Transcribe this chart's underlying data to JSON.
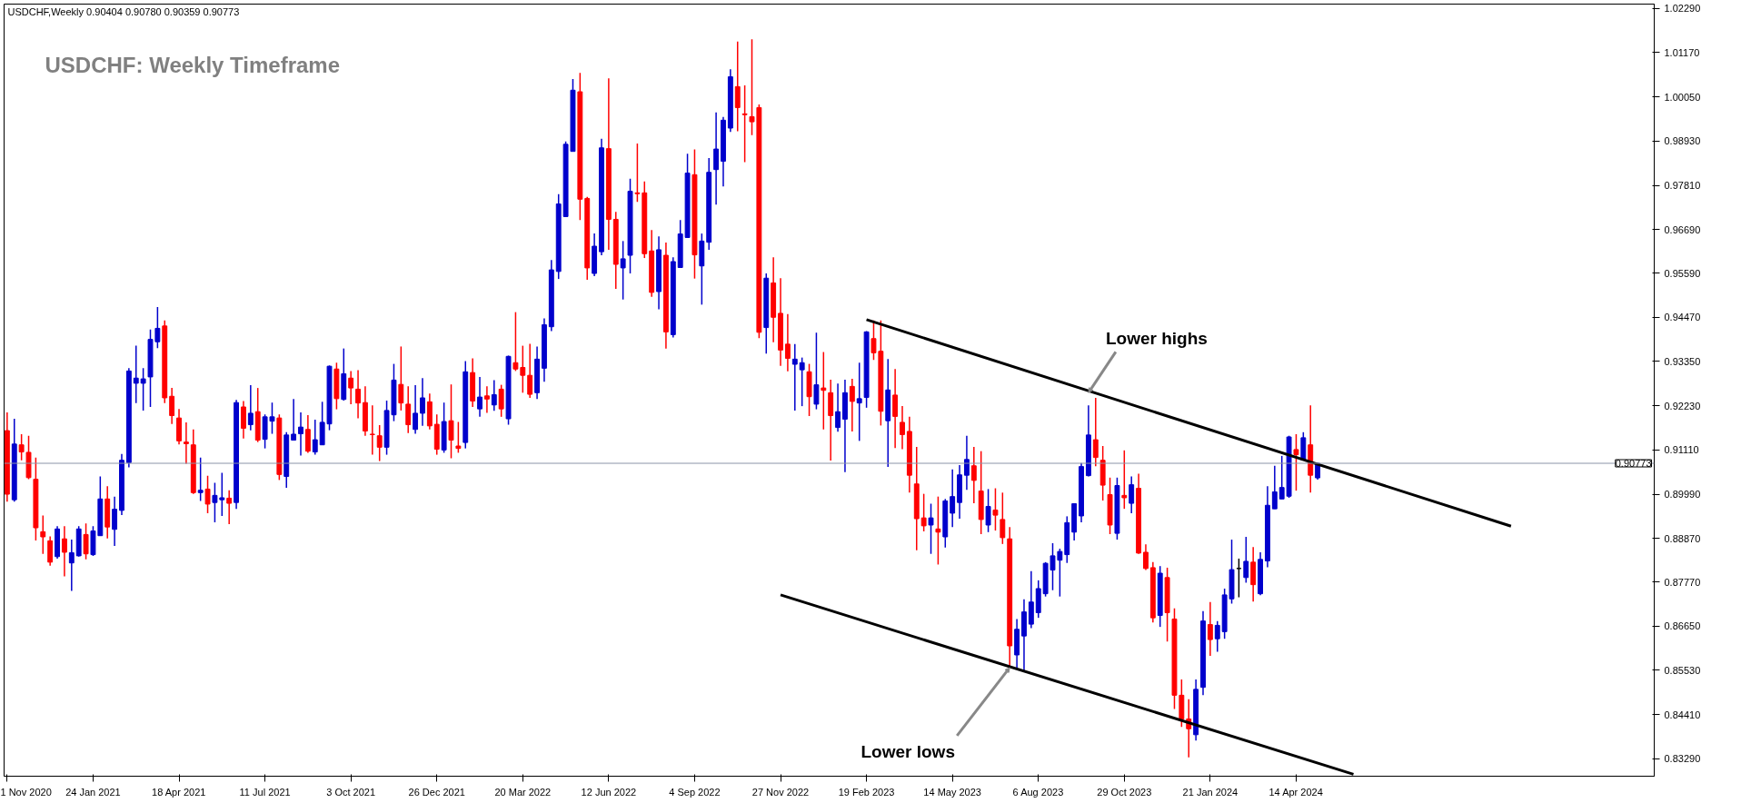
{
  "chart_data": {
    "type": "candlestick",
    "title": "USDCHF: Weekly Timeframe",
    "annotations": [
      "USDCHF,Weekly  0.90404 0.90780 0.90359 0.90773",
      {
        "text": "Lower highs",
        "x": "2023-09-24",
        "y": 0.9256
      },
      {
        "text": "Lower lows",
        "x": "2023-07-09",
        "y": 0.856
      }
    ],
    "x": [
      "2020-11-01",
      "2020-11-08",
      "2020-11-15",
      "2020-11-22",
      "2020-11-29",
      "2020-12-06",
      "2020-12-13",
      "2020-12-20",
      "2020-12-27",
      "2021-01-03",
      "2021-01-10",
      "2021-01-17",
      "2021-01-24",
      "2021-01-31",
      "2021-02-07",
      "2021-02-14",
      "2021-02-21",
      "2021-02-28",
      "2021-03-07",
      "2021-03-14",
      "2021-03-21",
      "2021-03-28",
      "2021-04-04",
      "2021-04-11",
      "2021-04-18",
      "2021-04-25",
      "2021-05-02",
      "2021-05-09",
      "2021-05-16",
      "2021-05-23",
      "2021-05-30",
      "2021-06-06",
      "2021-06-13",
      "2021-06-20",
      "2021-06-27",
      "2021-07-04",
      "2021-07-11",
      "2021-07-18",
      "2021-07-25",
      "2021-08-01",
      "2021-08-08",
      "2021-08-15",
      "2021-08-22",
      "2021-08-29",
      "2021-09-05",
      "2021-09-12",
      "2021-09-19",
      "2021-09-26",
      "2021-10-03",
      "2021-10-10",
      "2021-10-17",
      "2021-10-24",
      "2021-10-31",
      "2021-11-07",
      "2021-11-14",
      "2021-11-21",
      "2021-11-28",
      "2021-12-05",
      "2021-12-12",
      "2021-12-19",
      "2021-12-26",
      "2022-01-02",
      "2022-01-09",
      "2022-01-16",
      "2022-01-23",
      "2022-01-30",
      "2022-02-06",
      "2022-02-13",
      "2022-02-20",
      "2022-02-27",
      "2022-03-06",
      "2022-03-13",
      "2022-03-20",
      "2022-03-27",
      "2022-04-03",
      "2022-04-10",
      "2022-04-17",
      "2022-04-24",
      "2022-05-01",
      "2022-05-08",
      "2022-05-15",
      "2022-05-22",
      "2022-05-29",
      "2022-06-05",
      "2022-06-12",
      "2022-06-19",
      "2022-06-26",
      "2022-07-03",
      "2022-07-10",
      "2022-07-17",
      "2022-07-24",
      "2022-07-31",
      "2022-08-07",
      "2022-08-14",
      "2022-08-21",
      "2022-08-28",
      "2022-09-04",
      "2022-09-11",
      "2022-09-18",
      "2022-09-25",
      "2022-10-02",
      "2022-10-09",
      "2022-10-16",
      "2022-10-23",
      "2022-10-30",
      "2022-11-06",
      "2022-11-13",
      "2022-11-20",
      "2022-11-27",
      "2022-12-04",
      "2022-12-11",
      "2022-12-18",
      "2022-12-25",
      "2023-01-01",
      "2023-01-08",
      "2023-01-15",
      "2023-01-22",
      "2023-01-29",
      "2023-02-05",
      "2023-02-12",
      "2023-02-19",
      "2023-02-26",
      "2023-03-05",
      "2023-03-12",
      "2023-03-19",
      "2023-03-26",
      "2023-04-02",
      "2023-04-09",
      "2023-04-16",
      "2023-04-23",
      "2023-04-30",
      "2023-05-07",
      "2023-05-14",
      "2023-05-21",
      "2023-05-28",
      "2023-06-04",
      "2023-06-11",
      "2023-06-18",
      "2023-06-25",
      "2023-07-02",
      "2023-07-09",
      "2023-07-16",
      "2023-07-23",
      "2023-07-30",
      "2023-08-06",
      "2023-08-13",
      "2023-08-20",
      "2023-08-27",
      "2023-09-03",
      "2023-09-10",
      "2023-09-17",
      "2023-09-24",
      "2023-10-01",
      "2023-10-08",
      "2023-10-15",
      "2023-10-22",
      "2023-10-29",
      "2023-11-05",
      "2023-11-12",
      "2023-11-19",
      "2023-11-26",
      "2023-12-03",
      "2023-12-10",
      "2023-12-17",
      "2023-12-24",
      "2023-12-31",
      "2024-01-07",
      "2024-01-14",
      "2024-01-21",
      "2024-01-28",
      "2024-02-04",
      "2024-02-11",
      "2024-02-18",
      "2024-02-25",
      "2024-03-03",
      "2024-03-10",
      "2024-03-17",
      "2024-03-24",
      "2024-03-31",
      "2024-04-07",
      "2024-04-14",
      "2024-04-21",
      "2024-04-28",
      "2024-05-05"
    ],
    "ohlc": [
      [
        0.916,
        0.9206,
        0.898,
        0.8999
      ],
      [
        0.8985,
        0.919,
        0.898,
        0.9126
      ],
      [
        0.9124,
        0.9151,
        0.9085,
        0.9106
      ],
      [
        0.9105,
        0.9147,
        0.9037,
        0.9041
      ],
      [
        0.9037,
        0.9092,
        0.8882,
        0.8914
      ],
      [
        0.8904,
        0.8945,
        0.8848,
        0.8891
      ],
      [
        0.8881,
        0.8892,
        0.8818,
        0.8827
      ],
      [
        0.8841,
        0.8918,
        0.8836,
        0.8911
      ],
      [
        0.8886,
        0.8918,
        0.8791,
        0.8852
      ],
      [
        0.8825,
        0.8884,
        0.8754,
        0.8851
      ],
      [
        0.8843,
        0.8918,
        0.8841,
        0.8911
      ],
      [
        0.8897,
        0.8925,
        0.8834,
        0.8848
      ],
      [
        0.8846,
        0.8918,
        0.8843,
        0.8906
      ],
      [
        0.8894,
        0.9044,
        0.8894,
        0.8987
      ],
      [
        0.8987,
        0.9019,
        0.8887,
        0.8916
      ],
      [
        0.891,
        0.8993,
        0.8868,
        0.8961
      ],
      [
        0.8958,
        0.9101,
        0.8946,
        0.9085
      ],
      [
        0.9079,
        0.9318,
        0.9067,
        0.9311
      ],
      [
        0.928,
        0.9375,
        0.923,
        0.9293
      ],
      [
        0.928,
        0.9318,
        0.9211,
        0.9291
      ],
      [
        0.9296,
        0.9416,
        0.922,
        0.9391
      ],
      [
        0.9385,
        0.9473,
        0.9369,
        0.9419
      ],
      [
        0.9425,
        0.9439,
        0.923,
        0.9243
      ],
      [
        0.9247,
        0.9268,
        0.9177,
        0.9198
      ],
      [
        0.9192,
        0.9215,
        0.9125,
        0.9134
      ],
      [
        0.9131,
        0.9181,
        0.9076,
        0.9127
      ],
      [
        0.9124,
        0.9163,
        0.9,
        0.9003
      ],
      [
        0.9003,
        0.9092,
        0.8982,
        0.9009
      ],
      [
        0.9012,
        0.9046,
        0.8951,
        0.8974
      ],
      [
        0.8978,
        0.9028,
        0.8928,
        0.8996
      ],
      [
        0.8985,
        0.9053,
        0.8944,
        0.899
      ],
      [
        0.8989,
        0.9009,
        0.8923,
        0.8976
      ],
      [
        0.8978,
        0.9238,
        0.8962,
        0.9231
      ],
      [
        0.922,
        0.9235,
        0.914,
        0.9166
      ],
      [
        0.9175,
        0.9275,
        0.9161,
        0.9204
      ],
      [
        0.9208,
        0.9268,
        0.9131,
        0.9136
      ],
      [
        0.9138,
        0.9201,
        0.9115,
        0.9195
      ],
      [
        0.9184,
        0.9231,
        0.9152,
        0.9195
      ],
      [
        0.9192,
        0.9201,
        0.9035,
        0.9049
      ],
      [
        0.9044,
        0.9156,
        0.9015,
        0.9149
      ],
      [
        0.9136,
        0.924,
        0.9136,
        0.9151
      ],
      [
        0.9152,
        0.9206,
        0.9097,
        0.9169
      ],
      [
        0.9163,
        0.9199,
        0.9104,
        0.9108
      ],
      [
        0.9106,
        0.9188,
        0.9099,
        0.9137
      ],
      [
        0.9124,
        0.9233,
        0.9124,
        0.9181
      ],
      [
        0.9177,
        0.9325,
        0.9161,
        0.9323
      ],
      [
        0.9316,
        0.9332,
        0.9214,
        0.9241
      ],
      [
        0.9239,
        0.9368,
        0.9236,
        0.9304
      ],
      [
        0.9293,
        0.9311,
        0.9227,
        0.9268
      ],
      [
        0.9265,
        0.9313,
        0.9191,
        0.923
      ],
      [
        0.9231,
        0.9272,
        0.9147,
        0.9159
      ],
      [
        0.9151,
        0.9224,
        0.9099,
        0.915
      ],
      [
        0.9147,
        0.9174,
        0.9083,
        0.9118
      ],
      [
        0.9118,
        0.9236,
        0.9099,
        0.9211
      ],
      [
        0.92,
        0.9329,
        0.9184,
        0.9288
      ],
      [
        0.9277,
        0.9373,
        0.9211,
        0.923
      ],
      [
        0.9227,
        0.9272,
        0.9154,
        0.9175
      ],
      [
        0.9163,
        0.9275,
        0.9152,
        0.9204
      ],
      [
        0.9204,
        0.9293,
        0.9172,
        0.9243
      ],
      [
        0.9233,
        0.9254,
        0.9163,
        0.9172
      ],
      [
        0.9176,
        0.9201,
        0.9099,
        0.9113
      ],
      [
        0.9111,
        0.9231,
        0.9104,
        0.9183
      ],
      [
        0.9185,
        0.9277,
        0.909,
        0.9136
      ],
      [
        0.9121,
        0.9182,
        0.9104,
        0.9115
      ],
      [
        0.913,
        0.9336,
        0.9115,
        0.9309
      ],
      [
        0.9307,
        0.9343,
        0.922,
        0.9235
      ],
      [
        0.9215,
        0.9296,
        0.9195,
        0.9245
      ],
      [
        0.9248,
        0.9272,
        0.9205,
        0.924
      ],
      [
        0.9225,
        0.9288,
        0.921,
        0.9251
      ],
      [
        0.9265,
        0.9276,
        0.9195,
        0.9215
      ],
      [
        0.919,
        0.935,
        0.9175,
        0.9348
      ],
      [
        0.9332,
        0.946,
        0.9311,
        0.9316
      ],
      [
        0.932,
        0.9375,
        0.9256,
        0.93
      ],
      [
        0.93,
        0.938,
        0.9243,
        0.9252
      ],
      [
        0.9256,
        0.9373,
        0.924,
        0.9341
      ],
      [
        0.9318,
        0.9444,
        0.9284,
        0.9428
      ],
      [
        0.9423,
        0.9592,
        0.9412,
        0.9567
      ],
      [
        0.9563,
        0.9759,
        0.9544,
        0.9734
      ],
      [
        0.9702,
        0.9892,
        0.9702,
        0.9885
      ],
      [
        0.9867,
        1.005,
        0.9867,
        1.0022
      ],
      [
        1.0018,
        1.0066,
        0.9693,
        0.9746
      ],
      [
        0.9748,
        0.9752,
        0.9542,
        0.9572
      ],
      [
        0.9558,
        0.9659,
        0.9551,
        0.9627
      ],
      [
        0.9613,
        0.9899,
        0.9604,
        0.9876
      ],
      [
        0.9874,
        1.0052,
        0.9618,
        0.9695
      ],
      [
        0.9695,
        0.9714,
        0.9519,
        0.9581
      ],
      [
        0.9572,
        0.964,
        0.9492,
        0.9595
      ],
      [
        0.9604,
        0.9798,
        0.9558,
        0.9766
      ],
      [
        0.9762,
        0.9887,
        0.9739,
        0.976
      ],
      [
        0.9762,
        0.9791,
        0.9597,
        0.9608
      ],
      [
        0.9615,
        0.9668,
        0.9499,
        0.951
      ],
      [
        0.9512,
        0.9652,
        0.9467,
        0.9618
      ],
      [
        0.9604,
        0.9636,
        0.9368,
        0.941
      ],
      [
        0.9403,
        0.9599,
        0.9396,
        0.9588
      ],
      [
        0.9573,
        0.9693,
        0.9573,
        0.9658
      ],
      [
        0.9649,
        0.9861,
        0.9649,
        0.9812
      ],
      [
        0.9808,
        0.9872,
        0.9545,
        0.9605
      ],
      [
        0.9577,
        0.9659,
        0.9479,
        0.964
      ],
      [
        0.9637,
        0.985,
        0.9618,
        0.9814
      ],
      [
        0.9821,
        0.9966,
        0.9732,
        0.9873
      ],
      [
        0.9842,
        0.9954,
        0.9778,
        0.9946
      ],
      [
        0.9926,
        1.0075,
        0.9916,
        1.0056
      ],
      [
        1.0031,
        1.0145,
        0.9918,
        0.9978
      ],
      [
        0.9962,
        1.0034,
        0.984,
        0.996
      ],
      [
        0.9955,
        1.0151,
        0.9908,
        0.9942
      ],
      [
        0.9978,
        0.9986,
        0.9394,
        0.9409
      ],
      [
        0.9421,
        0.9558,
        0.9355,
        0.9546
      ],
      [
        0.9534,
        0.9599,
        0.9384,
        0.9447
      ],
      [
        0.9457,
        0.9546,
        0.9324,
        0.9364
      ],
      [
        0.9379,
        0.9455,
        0.931,
        0.9343
      ],
      [
        0.9328,
        0.9379,
        0.9211,
        0.9341
      ],
      [
        0.9314,
        0.9345,
        0.9222,
        0.9332
      ],
      [
        0.9309,
        0.9329,
        0.9197,
        0.9246
      ],
      [
        0.9227,
        0.9408,
        0.9214,
        0.9276
      ],
      [
        0.9268,
        0.9359,
        0.9163,
        0.9262
      ],
      [
        0.9256,
        0.9289,
        0.9084,
        0.9198
      ],
      [
        0.9168,
        0.9279,
        0.9157,
        0.9208
      ],
      [
        0.9189,
        0.9289,
        0.9055,
        0.9256
      ],
      [
        0.9272,
        0.9291,
        0.9158,
        0.9234
      ],
      [
        0.923,
        0.9332,
        0.9134,
        0.9241
      ],
      [
        0.9244,
        0.9412,
        0.9218,
        0.941
      ],
      [
        0.9393,
        0.9439,
        0.9339,
        0.9357
      ],
      [
        0.9361,
        0.9439,
        0.9173,
        0.9209
      ],
      [
        0.9185,
        0.9341,
        0.9068,
        0.9263
      ],
      [
        0.925,
        0.9316,
        0.9116,
        0.9196
      ],
      [
        0.9181,
        0.9222,
        0.9113,
        0.915
      ],
      [
        0.9158,
        0.9195,
        0.9003,
        0.9047
      ],
      [
        0.9025,
        0.9119,
        0.8857,
        0.8937
      ],
      [
        0.8939,
        0.9,
        0.8905,
        0.8919
      ],
      [
        0.8921,
        0.8975,
        0.8848,
        0.8939
      ],
      [
        0.8911,
        0.8993,
        0.8821,
        0.8903
      ],
      [
        0.8891,
        0.8987,
        0.8864,
        0.8982
      ],
      [
        0.8951,
        0.9062,
        0.8916,
        0.8993
      ],
      [
        0.8978,
        0.9073,
        0.8937,
        0.9048
      ],
      [
        0.9047,
        0.9147,
        0.901,
        0.9087
      ],
      [
        0.9071,
        0.9119,
        0.8976,
        0.9034
      ],
      [
        0.9007,
        0.9108,
        0.8898,
        0.8935
      ],
      [
        0.8921,
        0.9012,
        0.8903,
        0.8968
      ],
      [
        0.8959,
        0.9014,
        0.8907,
        0.8946
      ],
      [
        0.8935,
        0.9003,
        0.8873,
        0.8889
      ],
      [
        0.8886,
        0.8916,
        0.856,
        0.8615
      ],
      [
        0.8592,
        0.8683,
        0.8555,
        0.8657
      ],
      [
        0.864,
        0.8733,
        0.8551,
        0.8701
      ],
      [
        0.867,
        0.8804,
        0.866,
        0.8726
      ],
      [
        0.8699,
        0.8781,
        0.8686,
        0.876
      ],
      [
        0.8747,
        0.8827,
        0.874,
        0.8824
      ],
      [
        0.8807,
        0.8875,
        0.8756,
        0.8843
      ],
      [
        0.8832,
        0.8861,
        0.874,
        0.8854
      ],
      [
        0.8846,
        0.8943,
        0.8825,
        0.8927
      ],
      [
        0.8903,
        0.8975,
        0.8882,
        0.8975
      ],
      [
        0.8944,
        0.9078,
        0.8928,
        0.9069
      ],
      [
        0.9046,
        0.9224,
        0.9044,
        0.9149
      ],
      [
        0.9137,
        0.9243,
        0.907,
        0.9092
      ],
      [
        0.9085,
        0.9121,
        0.8983,
        0.9022
      ],
      [
        0.8998,
        0.9041,
        0.8898,
        0.8921
      ],
      [
        0.89,
        0.9041,
        0.8884,
        0.9021
      ],
      [
        0.8996,
        0.911,
        0.8962,
        0.899
      ],
      [
        0.8976,
        0.9044,
        0.8951,
        0.9023
      ],
      [
        0.9014,
        0.9051,
        0.8848,
        0.885
      ],
      [
        0.8852,
        0.8872,
        0.8807,
        0.8811
      ],
      [
        0.8813,
        0.8827,
        0.8674,
        0.8686
      ],
      [
        0.8692,
        0.8817,
        0.8663,
        0.8799
      ],
      [
        0.8788,
        0.8813,
        0.8626,
        0.8699
      ],
      [
        0.8683,
        0.871,
        0.8455,
        0.849
      ],
      [
        0.849,
        0.853,
        0.841,
        0.843
      ],
      [
        0.843,
        0.848,
        0.8333,
        0.8405
      ],
      [
        0.839,
        0.853,
        0.8375,
        0.8505
      ],
      [
        0.851,
        0.8703,
        0.849,
        0.8678
      ],
      [
        0.8669,
        0.8726,
        0.859,
        0.8631
      ],
      [
        0.8633,
        0.8678,
        0.86,
        0.8667
      ],
      [
        0.8651,
        0.876,
        0.8633,
        0.8744
      ],
      [
        0.8734,
        0.8884,
        0.8722,
        0.8808
      ],
      [
        0.8811,
        0.8836,
        0.8738,
        0.8811
      ],
      [
        0.8788,
        0.8891,
        0.8775,
        0.8829
      ],
      [
        0.8827,
        0.8865,
        0.8727,
        0.877
      ],
      [
        0.8747,
        0.8852,
        0.8743,
        0.8834
      ],
      [
        0.883,
        0.9019,
        0.8814,
        0.8971
      ],
      [
        0.8962,
        0.9071,
        0.8962,
        0.9005
      ],
      [
        0.8987,
        0.9096,
        0.8987,
        0.9016
      ],
      [
        0.8994,
        0.9147,
        0.899,
        0.9144
      ],
      [
        0.9112,
        0.9151,
        0.9008,
        0.9099
      ],
      [
        0.9086,
        0.9156,
        0.9086,
        0.9142
      ],
      [
        0.9124,
        0.9224,
        0.9003,
        0.9047
      ],
      [
        0.90404,
        0.9078,
        0.90359,
        0.90773
      ]
    ],
    "colors": [
      "#ff0000",
      "#0000cc",
      "#ff0000",
      "#ff0000",
      "#ff0000",
      "#ff0000",
      "#ff0000",
      "#0000cc",
      "#ff0000",
      "#0000cc",
      "#0000cc",
      "#ff0000",
      "#0000cc",
      "#0000cc",
      "#ff0000",
      "#0000cc",
      "#0000cc",
      "#0000cc",
      "#0000cc",
      "#0000cc",
      "#0000cc",
      "#0000cc",
      "#ff0000",
      "#ff0000",
      "#ff0000",
      "#ff0000",
      "#ff0000",
      "#0000cc",
      "#ff0000",
      "#0000cc",
      "#0000cc",
      "#ff0000",
      "#0000cc",
      "#ff0000",
      "#0000cc",
      "#ff0000",
      "#0000cc",
      "#0000cc",
      "#ff0000",
      "#0000cc",
      "#0000cc",
      "#0000cc",
      "#ff0000",
      "#0000cc",
      "#0000cc",
      "#0000cc",
      "#ff0000",
      "#0000cc",
      "#ff0000",
      "#ff0000",
      "#ff0000",
      "#ff0000",
      "#ff0000",
      "#0000cc",
      "#0000cc",
      "#ff0000",
      "#ff0000",
      "#0000cc",
      "#0000cc",
      "#ff0000",
      "#ff0000",
      "#0000cc",
      "#ff0000",
      "#ff0000",
      "#0000cc",
      "#ff0000",
      "#0000cc",
      "#ff0000",
      "#0000cc",
      "#ff0000",
      "#0000cc",
      "#ff0000",
      "#ff0000",
      "#ff0000",
      "#0000cc",
      "#0000cc",
      "#0000cc",
      "#0000cc",
      "#0000cc",
      "#0000cc",
      "#ff0000",
      "#ff0000",
      "#0000cc",
      "#0000cc",
      "#ff0000",
      "#ff0000",
      "#0000cc",
      "#0000cc",
      "#ff0000",
      "#ff0000",
      "#ff0000",
      "#0000cc",
      "#ff0000",
      "#0000cc",
      "#0000cc",
      "#0000cc",
      "#ff0000",
      "#0000cc",
      "#0000cc",
      "#0000cc",
      "#0000cc",
      "#0000cc",
      "#ff0000",
      "#ff0000",
      "#ff0000",
      "#ff0000",
      "#0000cc",
      "#ff0000",
      "#ff0000",
      "#ff0000",
      "#0000cc",
      "#0000cc",
      "#ff0000",
      "#0000cc",
      "#ff0000",
      "#ff0000",
      "#0000cc",
      "#0000cc",
      "#ff0000",
      "#0000cc",
      "#0000cc",
      "#ff0000",
      "#ff0000",
      "#0000cc",
      "#ff0000",
      "#ff0000",
      "#ff0000",
      "#ff0000",
      "#ff0000",
      "#0000cc",
      "#ff0000",
      "#0000cc",
      "#0000cc",
      "#0000cc",
      "#0000cc",
      "#ff0000",
      "#ff0000",
      "#0000cc",
      "#ff0000",
      "#ff0000",
      "#ff0000",
      "#0000cc",
      "#0000cc",
      "#0000cc",
      "#0000cc",
      "#0000cc",
      "#0000cc",
      "#0000cc",
      "#0000cc",
      "#0000cc",
      "#0000cc",
      "#0000cc",
      "#ff0000",
      "#ff0000",
      "#ff0000",
      "#0000cc",
      "#ff0000",
      "#0000cc",
      "#ff0000",
      "#ff0000",
      "#ff0000",
      "#0000cc",
      "#ff0000",
      "#ff0000",
      "#ff0000",
      "#ff0000",
      "#0000cc",
      "#0000cc",
      "#ff0000",
      "#0000cc",
      "#0000cc",
      "#0000cc",
      "#000000",
      "#0000cc",
      "#ff0000",
      "#0000cc",
      "#0000cc",
      "#0000cc",
      "#0000cc",
      "#0000cc",
      "#ff0000",
      "#0000cc",
      "#ff0000",
      "#0000cc"
    ],
    "series": [
      {
        "type": "line",
        "color": "#000000",
        "x": [
          "2023-02-19",
          "2024-11-10"
        ],
        "values": [
          0.9441,
          0.8918
        ]
      },
      {
        "type": "line",
        "color": "#000000",
        "x": [
          "2022-11-27",
          "2024-06-09"
        ],
        "values": [
          0.8744,
          0.829
        ]
      }
    ],
    "ref_lines": [
      {
        "axis": "y",
        "value": 0.90773,
        "label": "0.90773",
        "color": "#8c96a8"
      }
    ],
    "xlim": [
      "2020-10-29",
      "2025-03-30"
    ],
    "ylim": [
      0.8285,
      1.024
    ],
    "xticks": [
      {
        "value": "2020-11-01",
        "label": "1 Nov 2020"
      },
      {
        "value": "2021-01-24",
        "label": "24 Jan 2021"
      },
      {
        "value": "2021-04-18",
        "label": "18 Apr 2021"
      },
      {
        "value": "2021-07-11",
        "label": "11 Jul 2021"
      },
      {
        "value": "2021-10-03",
        "label": "3 Oct 2021"
      },
      {
        "value": "2021-12-26",
        "label": "26 Dec 2021"
      },
      {
        "value": "2022-03-20",
        "label": "20 Mar 2022"
      },
      {
        "value": "2022-06-12",
        "label": "12 Jun 2022"
      },
      {
        "value": "2022-09-04",
        "label": "4 Sep 2022"
      },
      {
        "value": "2022-11-27",
        "label": "27 Nov 2022"
      },
      {
        "value": "2023-02-19",
        "label": "19 Feb 2023"
      },
      {
        "value": "2023-05-14",
        "label": "14 May 2023"
      },
      {
        "value": "2023-08-06",
        "label": "6 Aug 2023"
      },
      {
        "value": "2023-10-29",
        "label": "29 Oct 2023"
      },
      {
        "value": "2024-01-21",
        "label": "21 Jan 2024"
      },
      {
        "value": "2024-04-14",
        "label": "14 Apr 2024"
      }
    ],
    "yticks": [
      {
        "value": 1.0229,
        "label": "1.02290"
      },
      {
        "value": 1.0117,
        "label": "1.01170"
      },
      {
        "value": 1.0005,
        "label": "1.00050"
      },
      {
        "value": 0.9893,
        "label": "0.98930"
      },
      {
        "value": 0.9781,
        "label": "0.97810"
      },
      {
        "value": 0.9669,
        "label": "0.96690"
      },
      {
        "value": 0.9559,
        "label": "0.95590"
      },
      {
        "value": 0.9447,
        "label": "0.94470"
      },
      {
        "value": 0.9335,
        "label": "0.93350"
      },
      {
        "value": 0.9223,
        "label": "0.92230"
      },
      {
        "value": 0.9111,
        "label": "0.91110"
      },
      {
        "value": 0.8999,
        "label": "0.89990"
      },
      {
        "value": 0.8887,
        "label": "0.88870"
      },
      {
        "value": 0.8777,
        "label": "0.87770"
      },
      {
        "value": 0.8665,
        "label": "0.86650"
      },
      {
        "value": 0.8553,
        "label": "0.85530"
      },
      {
        "value": 0.8441,
        "label": "0.84410"
      },
      {
        "value": 0.8329,
        "label": "0.83290"
      }
    ]
  }
}
